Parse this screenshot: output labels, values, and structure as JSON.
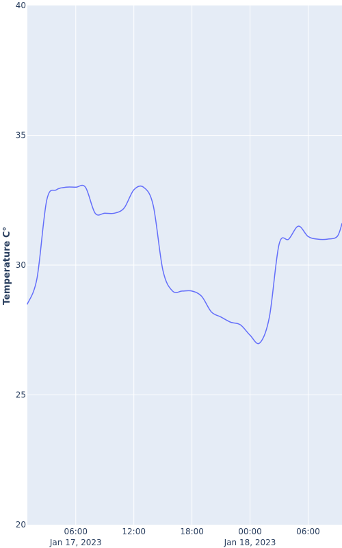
{
  "chart_data": {
    "type": "line",
    "title": "",
    "xlabel": "",
    "ylabel": "Temperature C°",
    "x_type": "datetime",
    "xlim": [
      "2023-01-17T01:00",
      "2023-01-18T09:30"
    ],
    "ylim": [
      20,
      40
    ],
    "y_ticks": [
      20,
      25,
      30,
      35,
      40
    ],
    "x_ticks": [
      {
        "value": "2023-01-17T06:00",
        "label": "06:00",
        "sublabel": "Jan 17, 2023"
      },
      {
        "value": "2023-01-17T12:00",
        "label": "12:00",
        "sublabel": ""
      },
      {
        "value": "2023-01-17T18:00",
        "label": "18:00",
        "sublabel": ""
      },
      {
        "value": "2023-01-18T00:00",
        "label": "00:00",
        "sublabel": "Jan 18, 2023"
      },
      {
        "value": "2023-01-18T06:00",
        "label": "06:00",
        "sublabel": ""
      }
    ],
    "grid": true,
    "line_color": "#636efa",
    "background_color": "#e5ecf6",
    "grid_color": "#ffffff",
    "series": [
      {
        "name": "",
        "x": [
          "2023-01-17T01:00",
          "2023-01-17T02:00",
          "2023-01-17T03:00",
          "2023-01-17T04:00",
          "2023-01-17T05:00",
          "2023-01-17T06:00",
          "2023-01-17T07:00",
          "2023-01-17T08:00",
          "2023-01-17T09:00",
          "2023-01-17T10:00",
          "2023-01-17T11:00",
          "2023-01-17T12:00",
          "2023-01-17T13:00",
          "2023-01-17T14:00",
          "2023-01-17T15:00",
          "2023-01-17T16:00",
          "2023-01-17T17:00",
          "2023-01-17T18:00",
          "2023-01-17T19:00",
          "2023-01-17T20:00",
          "2023-01-17T21:00",
          "2023-01-17T22:00",
          "2023-01-17T23:00",
          "2023-01-18T00:00",
          "2023-01-18T01:00",
          "2023-01-18T02:00",
          "2023-01-18T03:00",
          "2023-01-18T04:00",
          "2023-01-18T05:00",
          "2023-01-18T06:00",
          "2023-01-18T07:00",
          "2023-01-18T08:00",
          "2023-01-18T09:00",
          "2023-01-18T09:30"
        ],
        "y": [
          28.5,
          29.5,
          32.5,
          32.9,
          33.0,
          33.0,
          33.0,
          32.0,
          32.0,
          32.0,
          32.2,
          32.9,
          33.0,
          32.3,
          29.8,
          29.0,
          29.0,
          29.0,
          28.8,
          28.2,
          28.0,
          27.8,
          27.7,
          27.3,
          27.0,
          28.0,
          30.8,
          31.0,
          31.5,
          31.1,
          31.0,
          31.0,
          31.1,
          31.6
        ]
      }
    ]
  }
}
